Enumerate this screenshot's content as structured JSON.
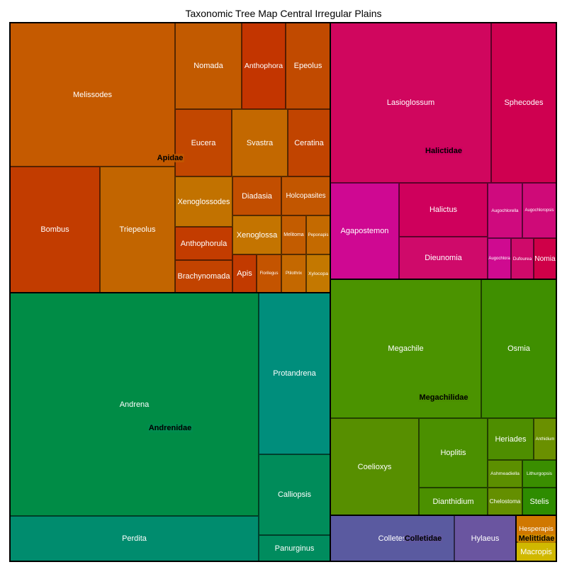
{
  "chart_data": {
    "type": "treemap",
    "title": "Taxonomic Tree Map Central Irregular Plains",
    "families": [
      {
        "name": "Apidae",
        "color": "#c25a00",
        "genera": [
          {
            "name": "Melissodes",
            "color": "#c55a00"
          },
          {
            "name": "Bombus",
            "color": "#c23c00"
          },
          {
            "name": "Triepeolus",
            "color": "#c26500"
          },
          {
            "name": "Nomada",
            "color": "#c25a00"
          },
          {
            "name": "Anthophora",
            "color": "#c33500"
          },
          {
            "name": "Epeolus",
            "color": "#c14a00"
          },
          {
            "name": "Eucera",
            "color": "#c24700"
          },
          {
            "name": "Svastra",
            "color": "#c36800"
          },
          {
            "name": "Ceratina",
            "color": "#c14400"
          },
          {
            "name": "Xenoglossodes",
            "color": "#c27200"
          },
          {
            "name": "Anthophorula",
            "color": "#c33c00"
          },
          {
            "name": "Brachynomada",
            "color": "#c24300"
          },
          {
            "name": "Diadasia",
            "color": "#c24e00"
          },
          {
            "name": "Holcopasites",
            "color": "#c25600"
          },
          {
            "name": "Xenoglossa",
            "color": "#c47400"
          },
          {
            "name": "Melitoma",
            "color": "#c35c00"
          },
          {
            "name": "Peponapis",
            "color": "#c46a00"
          },
          {
            "name": "Apis",
            "color": "#c23a00"
          },
          {
            "name": "Florilegus",
            "color": "#c45400"
          },
          {
            "name": "Ptilothrix",
            "color": "#c46800"
          },
          {
            "name": "Xylocopa",
            "color": "#c47800"
          }
        ]
      },
      {
        "name": "Halictidae",
        "color": "#cf0060",
        "genera": [
          {
            "name": "Lasioglossum",
            "color": "#d0065e"
          },
          {
            "name": "Sphecodes",
            "color": "#cf0050"
          },
          {
            "name": "Agapostemon",
            "color": "#cf0892"
          },
          {
            "name": "Halictus",
            "color": "#cf005c"
          },
          {
            "name": "Dieunomia",
            "color": "#cf0a6a"
          },
          {
            "name": "Augochlorella",
            "color": "#cf0a7e"
          },
          {
            "name": "Augochloropsis",
            "color": "#cf0a78"
          },
          {
            "name": "Augochlora",
            "color": "#cf0a90"
          },
          {
            "name": "Dufourea",
            "color": "#cf0a6a"
          },
          {
            "name": "Nomia",
            "color": "#cf0048"
          }
        ]
      },
      {
        "name": "Andrenidae",
        "color": "#008c50",
        "genera": [
          {
            "name": "Andrena",
            "color": "#008c46"
          },
          {
            "name": "Perdita",
            "color": "#008c6e"
          },
          {
            "name": "Protandrena",
            "color": "#008e7c"
          },
          {
            "name": "Calliopsis",
            "color": "#008c5a"
          },
          {
            "name": "Panurginus",
            "color": "#008c5e"
          }
        ]
      },
      {
        "name": "Megachilidae",
        "color": "#4b9000",
        "genera": [
          {
            "name": "Megachile",
            "color": "#4b9300"
          },
          {
            "name": "Osmia",
            "color": "#3f8f00"
          },
          {
            "name": "Coelioxys",
            "color": "#578f00"
          },
          {
            "name": "Hoplitis",
            "color": "#4b9000"
          },
          {
            "name": "Dianthidium",
            "color": "#4b9000"
          },
          {
            "name": "Heriades",
            "color": "#4e8e00"
          },
          {
            "name": "Anthidium",
            "color": "#6a9000"
          },
          {
            "name": "Ashmeadiella",
            "color": "#5c8f00"
          },
          {
            "name": "Lithurgopsis",
            "color": "#3a8e00"
          },
          {
            "name": "Chelostoma",
            "color": "#648f00"
          },
          {
            "name": "Stelis",
            "color": "#2e8c00"
          }
        ]
      },
      {
        "name": "Colletidae",
        "color": "#6058a0",
        "genera": [
          {
            "name": "Colletes",
            "color": "#5a5aa0"
          },
          {
            "name": "Hylaeus",
            "color": "#6a55a0"
          }
        ]
      },
      {
        "name": "Melittidae",
        "color": "#d09000",
        "genera": [
          {
            "name": "Hesperapis",
            "color": "#d07800"
          },
          {
            "name": "Macropis",
            "color": "#d0b800"
          }
        ]
      }
    ]
  }
}
